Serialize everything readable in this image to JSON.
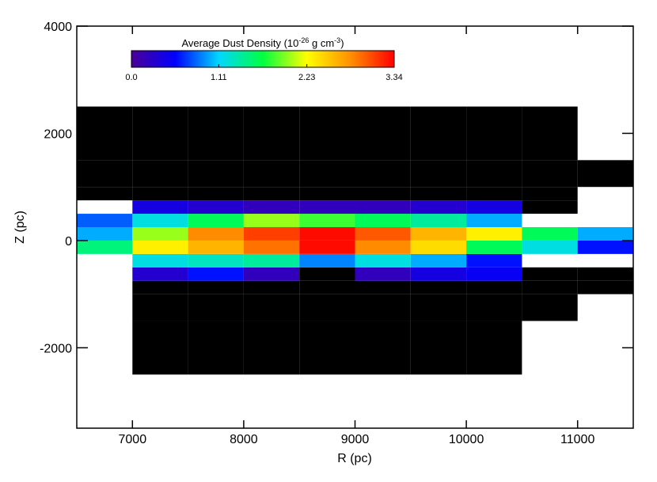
{
  "chart_data": {
    "type": "heatmap",
    "xlabel": "R (pc)",
    "ylabel": "Z (pc)",
    "xlim": [
      6500,
      11500
    ],
    "ylim": [
      -3500,
      4000
    ],
    "xticks": [
      7000,
      8000,
      9000,
      10000,
      11000
    ],
    "yticks": [
      -2000,
      0,
      2000,
      4000
    ],
    "x_bins": [
      6500,
      7000,
      7500,
      8000,
      8500,
      9000,
      9500,
      10000,
      10500,
      11000,
      11500
    ],
    "y_bins": [
      -2500,
      -1500,
      -1000,
      -750,
      -500,
      -250,
      0,
      250,
      500,
      750,
      1000,
      1500,
      2500
    ],
    "z": [
      [
        null,
        0,
        0,
        0,
        0,
        0,
        0,
        0,
        null,
        null
      ],
      [
        null,
        0,
        0,
        0,
        0,
        0,
        0,
        0,
        0,
        null
      ],
      [
        null,
        0,
        0,
        0,
        0,
        0,
        0,
        0,
        0,
        0
      ],
      [
        null,
        0.3,
        0.6,
        0.2,
        0,
        0.2,
        0.4,
        0.5,
        0,
        0
      ],
      [
        null,
        1.2,
        1.3,
        1.4,
        0.9,
        1.2,
        1.0,
        0.6,
        null,
        null
      ],
      [
        1.5,
        2.3,
        2.6,
        2.9,
        3.3,
        2.8,
        2.4,
        1.6,
        1.2,
        0.6
      ],
      [
        1.0,
        2.0,
        2.8,
        3.1,
        3.3,
        3.0,
        2.6,
        2.3,
        1.6,
        1.0
      ],
      [
        0.8,
        1.2,
        1.6,
        2.0,
        1.8,
        1.6,
        1.4,
        1.0,
        null,
        null
      ],
      [
        null,
        0.4,
        0.3,
        0.2,
        0.2,
        0.2,
        0.3,
        0.4,
        0,
        null
      ],
      [
        0,
        0,
        0,
        0,
        0,
        0,
        0,
        0,
        0,
        null
      ],
      [
        0,
        0,
        0,
        0,
        0,
        0,
        0,
        0,
        0,
        0
      ],
      [
        0,
        0,
        0,
        0,
        0,
        0,
        0,
        0,
        0,
        null
      ]
    ],
    "zero_color": "#000000",
    "colorbar": {
      "title_parts": [
        "Average Dust Density (10",
        "-26",
        " g cm",
        "-3",
        ")"
      ],
      "lim": [
        0,
        3.34
      ],
      "ticks": [
        {
          "value": 0,
          "label": "0.0"
        },
        1.11,
        2.23,
        3.34
      ],
      "colormap": [
        "#4b0096",
        "#0000ff",
        "#00d8ff",
        "#00ff40",
        "#ffff00",
        "#ff9000",
        "#ff0000"
      ]
    }
  }
}
